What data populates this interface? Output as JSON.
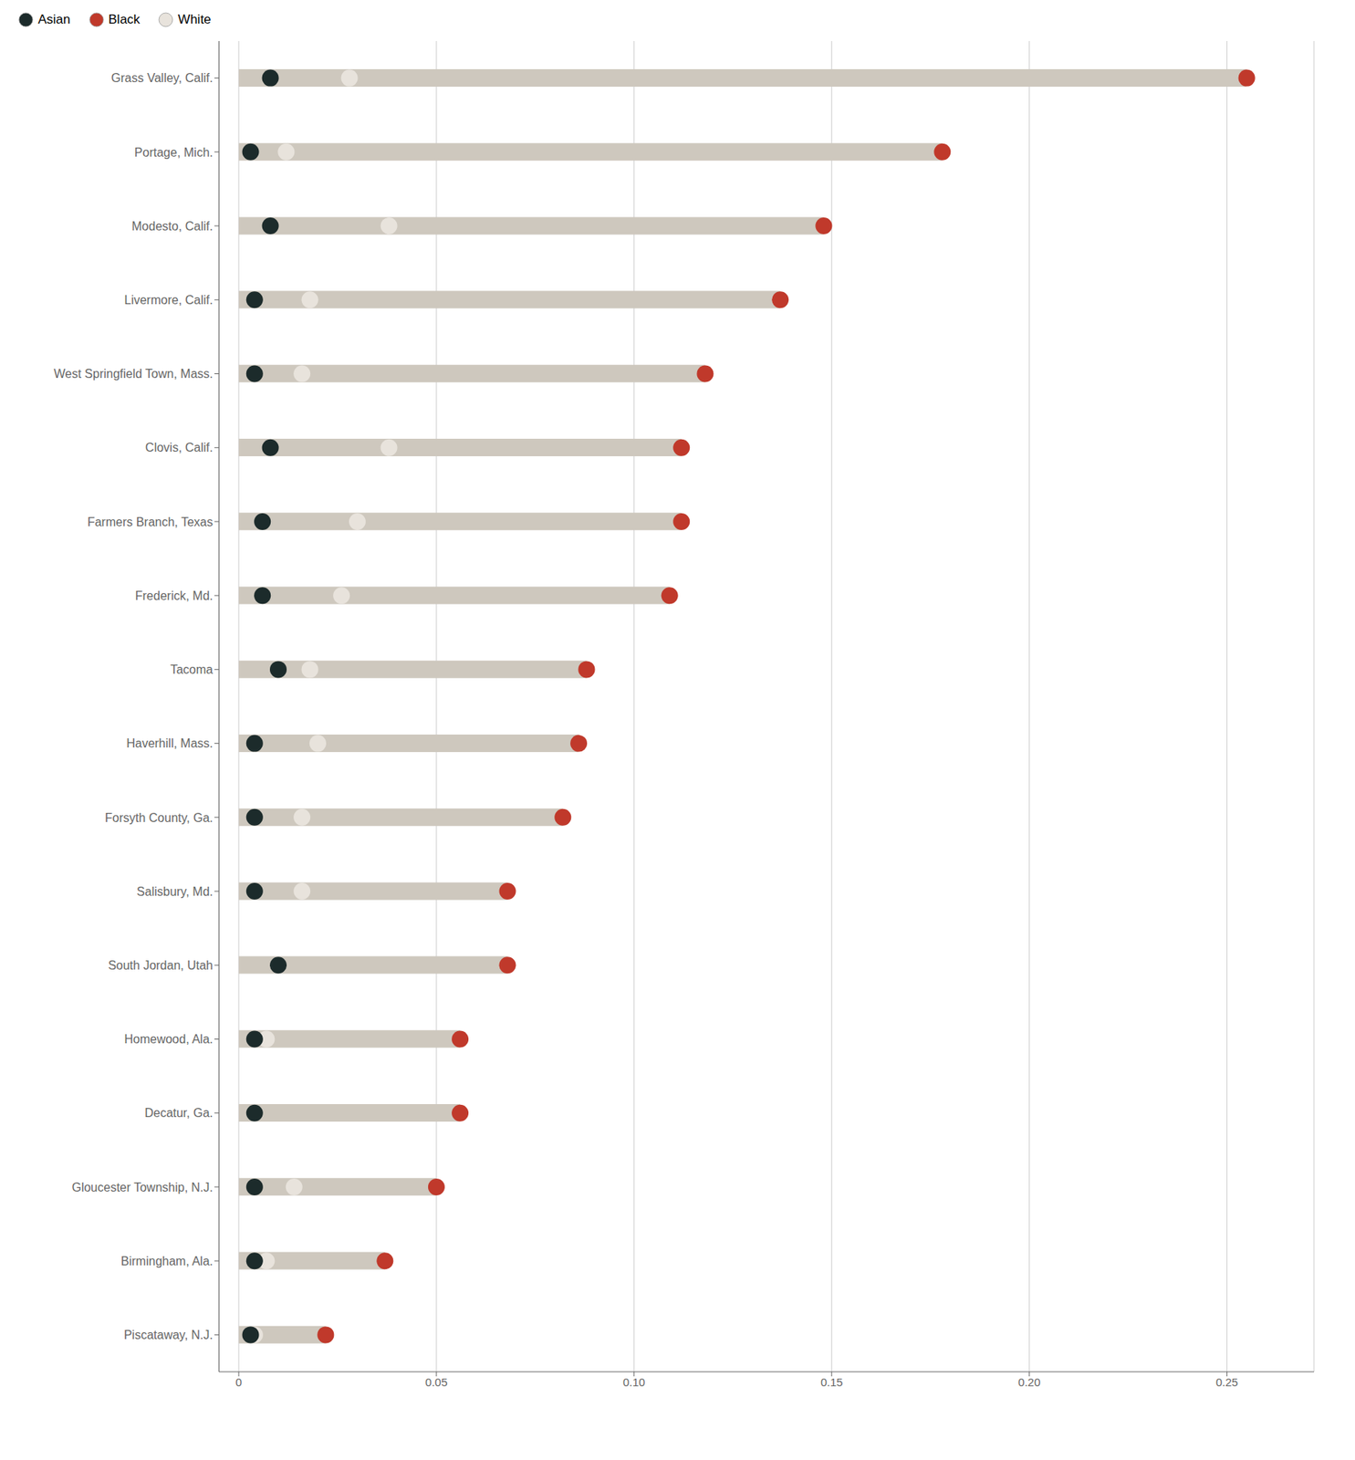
{
  "chart_data": {
    "type": "bar",
    "orientation": "horizontal",
    "categories": [
      "Grass Valley, Calif.",
      "Portage, Mich.",
      "Modesto, Calif.",
      "Livermore, Calif.",
      "West Springfield Town, Mass.",
      "Clovis, Calif.",
      "Farmers Branch, Texas",
      "Frederick, Md.",
      "Tacoma",
      "Haverhill, Mass.",
      "Forsyth County, Ga.",
      "Salisbury, Md.",
      "South Jordan, Utah",
      "Homewood, Ala.",
      "Decatur, Ga.",
      "Gloucester Township, N.J.",
      "Birmingham, Ala.",
      "Piscataway, N.J."
    ],
    "values": [
      0.255,
      0.178,
      0.148,
      0.137,
      0.118,
      0.112,
      0.112,
      0.109,
      0.088,
      0.086,
      0.082,
      0.068,
      0.068,
      0.056,
      0.056,
      0.05,
      0.037,
      0.022
    ],
    "color": "#cec8be",
    "series": [
      {
        "name": "Asian",
        "type": "scatter",
        "color": "#1c2b2b",
        "values": [
          0.008,
          0.003,
          0.008,
          0.004,
          0.004,
          0.008,
          0.006,
          0.006,
          0.01,
          0.004,
          0.004,
          0.004,
          0.01,
          0.004,
          0.004,
          0.004,
          0.004,
          0.003
        ]
      },
      {
        "name": "Black",
        "type": "scatter",
        "color": "#c0392b",
        "values": [
          0.255,
          0.178,
          0.148,
          0.137,
          0.118,
          0.112,
          0.112,
          0.109,
          0.088,
          0.086,
          0.082,
          0.068,
          0.068,
          0.056,
          0.056,
          0.05,
          0.037,
          0.022
        ]
      },
      {
        "name": "White",
        "type": "scatter",
        "color": "#e8e3dc",
        "values": [
          0.028,
          0.012,
          0.038,
          0.018,
          0.016,
          0.038,
          0.03,
          0.026,
          0.018,
          0.02,
          0.016,
          0.016,
          0.01,
          0.007,
          0.004,
          0.014,
          0.007,
          0.004
        ]
      }
    ],
    "xlim": [
      -0.005,
      0.272
    ],
    "xticks": [
      0,
      0.05,
      {
        "value": 0.1,
        "label": "0.10"
      },
      0.15,
      {
        "value": 0.2,
        "label": "0.20"
      },
      0.25
    ],
    "grid": true,
    "legend": "upper left"
  }
}
